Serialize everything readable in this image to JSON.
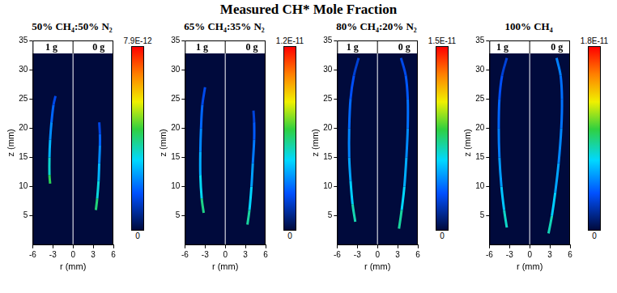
{
  "title": "Measured CH* Mole Fraction",
  "chart_data": [
    {
      "type": "line",
      "title": "50% CH₄:50% N₂",
      "x_label": "r (mm)",
      "y_label": "z (mm)",
      "xlim": [
        -6,
        6
      ],
      "xticks": [
        -6,
        -3,
        0,
        3,
        6
      ],
      "ylim": [
        0,
        35
      ],
      "yticks": [
        5,
        10,
        15,
        20,
        25,
        30,
        35
      ],
      "grid": false,
      "series": [
        {
          "name": "1 g",
          "x": [
            -3.4,
            -3.5,
            -3.5,
            -3.4,
            -3.2,
            -2.9,
            -2.6
          ],
          "values": [
            10.5,
            12,
            15,
            18,
            21,
            24,
            25.5
          ],
          "ch_mole_fraction": [
            4.6e-12,
            3.8e-12,
            2.9e-12,
            2.4e-12,
            2e-12,
            1.6e-12,
            1.2e-12
          ]
        },
        {
          "name": "0 g",
          "x": [
            3.4,
            3.6,
            3.8,
            3.9,
            4.0,
            4.0,
            3.9
          ],
          "values": [
            6,
            8,
            11,
            14,
            17,
            19,
            21
          ],
          "ch_mole_fraction": [
            4.3e-12,
            3.6e-12,
            2.9e-12,
            2.4e-12,
            2e-12,
            1.6e-12,
            1.1e-12
          ]
        }
      ],
      "colorbar": {
        "range": [
          0,
          7.9e-12
        ],
        "ticks": [
          0,
          {
            "value": 7.9e-12,
            "label": "7.9E-12"
          }
        ]
      }
    },
    {
      "type": "line",
      "title": "65% CH₄:35% N₂",
      "x_label": "r (mm)",
      "y_label": "z (mm)",
      "xlim": [
        -6,
        6
      ],
      "xticks": [
        -6,
        -3,
        0,
        3,
        6
      ],
      "ylim": [
        0,
        35
      ],
      "yticks": [
        5,
        10,
        15,
        20,
        25,
        30,
        35
      ],
      "grid": false,
      "series": [
        {
          "name": "1 g",
          "x": [
            -3.2,
            -3.5,
            -3.7,
            -3.7,
            -3.6,
            -3.4,
            -3.0
          ],
          "values": [
            5.5,
            8,
            12,
            16,
            20,
            24,
            27
          ],
          "ch_mole_fraction": [
            6.5e-12,
            5.2e-12,
            4.2e-12,
            3.5e-12,
            3e-12,
            2.5e-12,
            1.8e-12
          ]
        },
        {
          "name": "0 g",
          "x": [
            3.3,
            3.6,
            3.9,
            4.1,
            4.3,
            4.3,
            4.2
          ],
          "values": [
            3.5,
            6,
            10,
            14,
            18,
            21,
            23
          ],
          "ch_mole_fraction": [
            6.2e-12,
            5e-12,
            4e-12,
            3.3e-12,
            2.8e-12,
            2.3e-12,
            1.6e-12
          ]
        }
      ],
      "colorbar": {
        "range": [
          0,
          1.2e-11
        ],
        "ticks": [
          0,
          {
            "value": 1.2e-11,
            "label": "1.2E-11"
          }
        ]
      }
    },
    {
      "type": "line",
      "title": "80% CH₄:20% N₂",
      "x_label": "r (mm)",
      "y_label": "z (mm)",
      "xlim": [
        -6,
        6
      ],
      "xticks": [
        -6,
        -3,
        0,
        3,
        6
      ],
      "ylim": [
        0,
        35
      ],
      "yticks": [
        5,
        10,
        15,
        20,
        25,
        30,
        35
      ],
      "grid": false,
      "series": [
        {
          "name": "1 g",
          "x": [
            -3.3,
            -3.7,
            -4.0,
            -4.2,
            -4.2,
            -4.0,
            -3.5,
            -2.8
          ],
          "values": [
            4,
            7,
            11,
            15,
            20,
            25,
            29,
            32
          ],
          "ch_mole_fraction": [
            7.5e-12,
            6e-12,
            5e-12,
            4.3e-12,
            3.8e-12,
            3.2e-12,
            2.6e-12,
            2e-12
          ]
        },
        {
          "name": "0 g",
          "x": [
            3.2,
            3.6,
            4.0,
            4.3,
            4.5,
            4.5,
            4.2,
            3.5
          ],
          "values": [
            2.8,
            6,
            10,
            15,
            20,
            25,
            29,
            32
          ],
          "ch_mole_fraction": [
            7.8e-12,
            6.2e-12,
            5.2e-12,
            4.5e-12,
            3.9e-12,
            3.4e-12,
            2.9e-12,
            2.4e-12
          ]
        }
      ],
      "colorbar": {
        "range": [
          0,
          1.5e-11
        ],
        "ticks": [
          0,
          {
            "value": 1.5e-11,
            "label": "1.5E-11"
          }
        ]
      }
    },
    {
      "type": "line",
      "title": "100% CH₄",
      "x_label": "r (mm)",
      "y_label": "z (mm)",
      "xlim": [
        -6,
        6
      ],
      "xticks": [
        -6,
        -3,
        0,
        3,
        6
      ],
      "ylim": [
        0,
        35
      ],
      "yticks": [
        5,
        10,
        15,
        20,
        25,
        30,
        35
      ],
      "grid": false,
      "series": [
        {
          "name": "1 g",
          "x": [
            -3.4,
            -3.8,
            -4.2,
            -4.5,
            -4.6,
            -4.5,
            -4.1,
            -3.4
          ],
          "values": [
            3,
            6,
            10,
            15,
            20,
            25,
            29,
            32
          ],
          "ch_mole_fraction": [
            8.5e-12,
            7e-12,
            5.8e-12,
            5e-12,
            4.4e-12,
            3.8e-12,
            3.2e-12,
            2.5e-12
          ]
        },
        {
          "name": "0 g",
          "x": [
            2.8,
            3.3,
            3.8,
            4.3,
            4.7,
            4.8,
            4.6,
            4.0
          ],
          "values": [
            2,
            5,
            9,
            14,
            20,
            25,
            29,
            32
          ],
          "ch_mole_fraction": [
            8.8e-12,
            7.2e-12,
            6e-12,
            5.2e-12,
            4.6e-12,
            4.2e-12,
            4.5e-12,
            5e-12
          ]
        }
      ],
      "colorbar": {
        "range": [
          0,
          1.8e-11
        ],
        "ticks": [
          0,
          {
            "value": 1.8e-11,
            "label": "1.8E-11"
          }
        ]
      }
    }
  ]
}
